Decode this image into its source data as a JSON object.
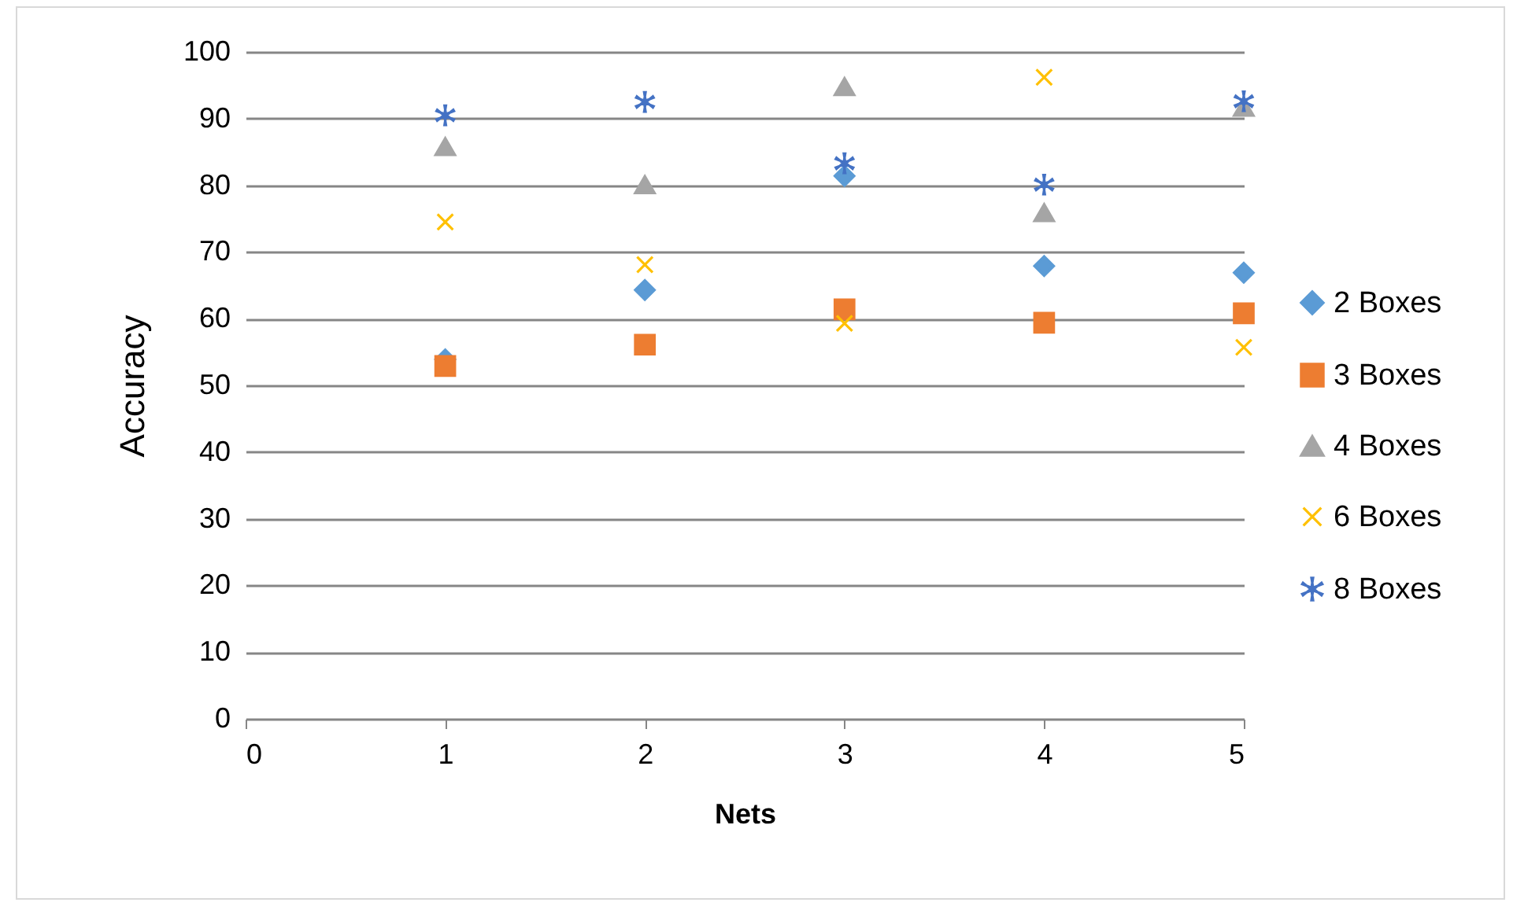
{
  "chart_data": {
    "type": "scatter",
    "xlabel": "Nets",
    "ylabel": "Accuracy",
    "x": [
      1,
      2,
      3,
      4,
      5
    ],
    "series": [
      {
        "name": "2 Boxes",
        "color": "#5b9bd5",
        "marker": "diamond",
        "values": [
          53.9,
          64.3,
          81.4,
          67.9,
          66.9
        ]
      },
      {
        "name": "3 Boxes",
        "color": "#ed7d31",
        "marker": "square",
        "values": [
          52.9,
          56.1,
          61.4,
          59.4,
          60.8
        ]
      },
      {
        "name": "4 Boxes",
        "color": "#a5a5a5",
        "marker": "triangle",
        "values": [
          85.8,
          80.1,
          94.8,
          75.9,
          91.7
        ]
      },
      {
        "name": "6 Boxes",
        "color": "#ffc000",
        "marker": "cross",
        "values": [
          74.5,
          68.1,
          59.3,
          96.2,
          55.7
        ]
      },
      {
        "name": "8 Boxes",
        "color": "#4472c4",
        "marker": "star",
        "values": [
          90.5,
          92.5,
          83.3,
          80.1,
          92.6
        ]
      }
    ],
    "xlim": [
      0,
      5
    ],
    "xticks": [
      0,
      1,
      2,
      3,
      4,
      5
    ],
    "ylim": [
      0,
      100
    ],
    "yticks": [
      0,
      10,
      20,
      30,
      40,
      50,
      60,
      70,
      80,
      90,
      100
    ],
    "grid": "y",
    "legend": "right"
  }
}
